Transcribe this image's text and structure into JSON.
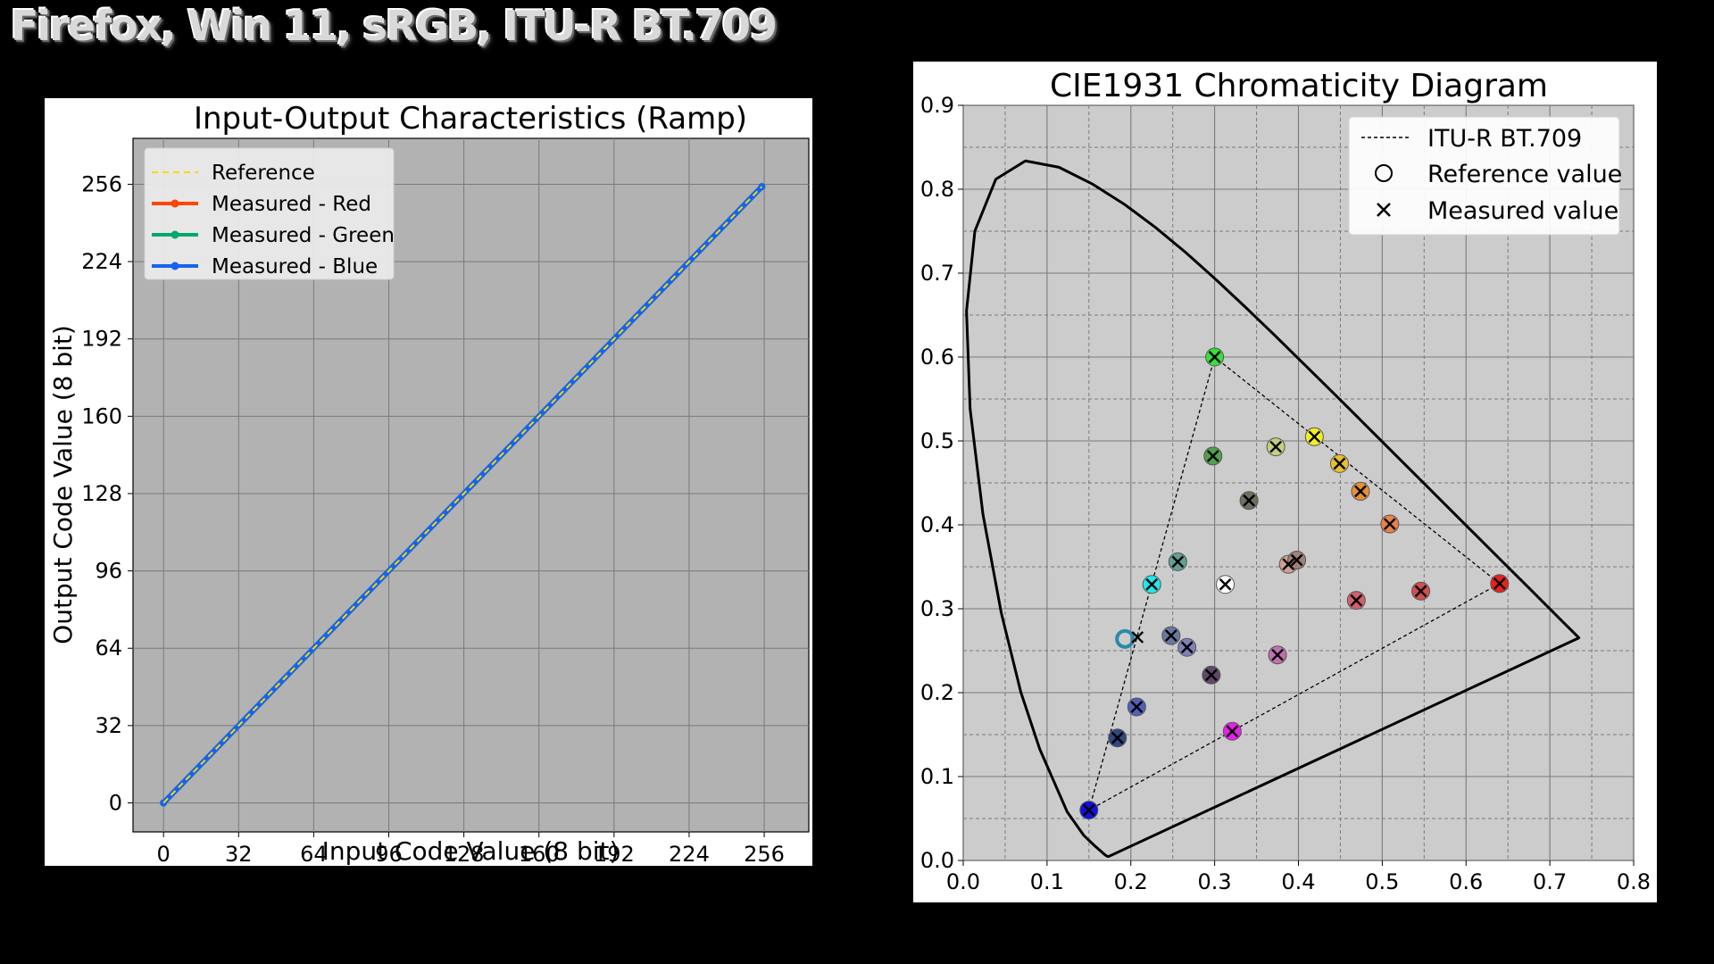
{
  "page": {
    "title": "Firefox, Win 11, sRGB, ITU-R BT.709"
  },
  "chart_data": [
    {
      "type": "line",
      "title": "Input-Output Characteristics (Ramp)",
      "xlabel": "Input Code Value (8 bit)",
      "ylabel": "Output Code Value (8 bit)",
      "xlim": [
        -13,
        275
      ],
      "ylim": [
        -12,
        275
      ],
      "xticks": [
        0,
        32,
        64,
        96,
        128,
        160,
        192,
        224,
        256
      ],
      "yticks": [
        0,
        32,
        64,
        96,
        128,
        160,
        192,
        224,
        256
      ],
      "grid": true,
      "legend_position": "top-left",
      "series": [
        {
          "name": "Reference",
          "color": "#ffd700",
          "style": "dashed",
          "x": [
            0,
            255
          ],
          "y": [
            0,
            255
          ]
        },
        {
          "name": "Measured - Red",
          "color": "#ff4500",
          "style": "solid-marker",
          "x": [
            0,
            255
          ],
          "y": [
            0,
            255
          ]
        },
        {
          "name": "Measured - Green",
          "color": "#00a86b",
          "style": "solid-marker",
          "x": [
            0,
            255
          ],
          "y": [
            0,
            255
          ]
        },
        {
          "name": "Measured - Blue",
          "color": "#1464f0",
          "style": "solid-marker",
          "x": [
            0,
            255
          ],
          "y": [
            0,
            255
          ]
        }
      ]
    },
    {
      "type": "scatter",
      "title": "CIE1931 Chromaticity Diagram",
      "xlim": [
        0.0,
        0.8
      ],
      "ylim": [
        0.0,
        0.9
      ],
      "xticks": [
        "0.0",
        "0.1",
        "0.2",
        "0.3",
        "0.4",
        "0.5",
        "0.6",
        "0.7",
        "0.8"
      ],
      "yticks": [
        "0.0",
        "0.1",
        "0.2",
        "0.3",
        "0.4",
        "0.5",
        "0.6",
        "0.7",
        "0.8",
        "0.9"
      ],
      "grid": true,
      "legend_position": "top-right",
      "legend": {
        "gamut": "ITU-R BT.709",
        "reference": "Reference value",
        "measured": "Measured value"
      },
      "spectral_locus": [
        [
          0.1741,
          0.005
        ],
        [
          0.1738,
          0.0049
        ],
        [
          0.1733,
          0.0048
        ],
        [
          0.1726,
          0.0048
        ],
        [
          0.1714,
          0.0051
        ],
        [
          0.1689,
          0.0069
        ],
        [
          0.1644,
          0.0109
        ],
        [
          0.1566,
          0.0177
        ],
        [
          0.144,
          0.0297
        ],
        [
          0.1241,
          0.0578
        ],
        [
          0.0913,
          0.1327
        ],
        [
          0.0687,
          0.2007
        ],
        [
          0.0454,
          0.295
        ],
        [
          0.0235,
          0.4127
        ],
        [
          0.0082,
          0.5384
        ],
        [
          0.0039,
          0.6548
        ],
        [
          0.0139,
          0.7502
        ],
        [
          0.0389,
          0.812
        ],
        [
          0.0743,
          0.8338
        ],
        [
          0.1142,
          0.8262
        ],
        [
          0.1547,
          0.8059
        ],
        [
          0.1929,
          0.7816
        ],
        [
          0.2296,
          0.7543
        ],
        [
          0.2658,
          0.7243
        ],
        [
          0.3016,
          0.6923
        ],
        [
          0.3373,
          0.6589
        ],
        [
          0.3731,
          0.6245
        ],
        [
          0.4087,
          0.5896
        ],
        [
          0.4441,
          0.5547
        ],
        [
          0.4788,
          0.5202
        ],
        [
          0.5125,
          0.4866
        ],
        [
          0.5448,
          0.4544
        ],
        [
          0.5752,
          0.4242
        ],
        [
          0.6029,
          0.3965
        ],
        [
          0.627,
          0.3725
        ],
        [
          0.6482,
          0.3514
        ],
        [
          0.6658,
          0.334
        ],
        [
          0.6801,
          0.3197
        ],
        [
          0.6915,
          0.3083
        ],
        [
          0.7006,
          0.2993
        ],
        [
          0.714,
          0.2859
        ],
        [
          0.7347,
          0.2653
        ]
      ],
      "gamut": [
        [
          0.64,
          0.33
        ],
        [
          0.3,
          0.6
        ],
        [
          0.15,
          0.06
        ]
      ],
      "points": [
        {
          "x": 0.64,
          "y": 0.33,
          "color": "#e82020",
          "mx": 0.64,
          "my": 0.33
        },
        {
          "x": 0.3,
          "y": 0.6,
          "color": "#38e038",
          "mx": 0.3,
          "my": 0.6
        },
        {
          "x": 0.15,
          "y": 0.06,
          "color": "#1010e0",
          "mx": 0.15,
          "my": 0.06
        },
        {
          "x": 0.419,
          "y": 0.505,
          "color": "#f0f020",
          "mx": 0.419,
          "my": 0.505
        },
        {
          "x": 0.225,
          "y": 0.329,
          "color": "#20e8e8",
          "mx": 0.225,
          "my": 0.329
        },
        {
          "x": 0.321,
          "y": 0.154,
          "color": "#e820e8",
          "mx": 0.321,
          "my": 0.154
        },
        {
          "x": 0.3127,
          "y": 0.329,
          "color": "#ffffff",
          "mx": 0.3127,
          "my": 0.329
        },
        {
          "x": 0.193,
          "y": 0.264,
          "color": "#2a8aaa",
          "mx": 0.208,
          "my": 0.266,
          "ring": true
        },
        {
          "x": 0.449,
          "y": 0.473,
          "color": "#e8c030",
          "mx": 0.449,
          "my": 0.473
        },
        {
          "x": 0.474,
          "y": 0.44,
          "color": "#e89030",
          "mx": 0.474,
          "my": 0.44
        },
        {
          "x": 0.509,
          "y": 0.401,
          "color": "#e88048",
          "mx": 0.509,
          "my": 0.401
        },
        {
          "x": 0.546,
          "y": 0.321,
          "color": "#d05050",
          "mx": 0.546,
          "my": 0.321
        },
        {
          "x": 0.469,
          "y": 0.31,
          "color": "#d06070",
          "mx": 0.469,
          "my": 0.31
        },
        {
          "x": 0.373,
          "y": 0.493,
          "color": "#c0d080",
          "mx": 0.373,
          "my": 0.493
        },
        {
          "x": 0.298,
          "y": 0.482,
          "color": "#50a050",
          "mx": 0.298,
          "my": 0.482
        },
        {
          "x": 0.341,
          "y": 0.429,
          "color": "#707060",
          "mx": 0.341,
          "my": 0.429
        },
        {
          "x": 0.256,
          "y": 0.356,
          "color": "#60a098",
          "mx": 0.256,
          "my": 0.356
        },
        {
          "x": 0.388,
          "y": 0.353,
          "color": "#d0a090",
          "mx": 0.388,
          "my": 0.353
        },
        {
          "x": 0.398,
          "y": 0.358,
          "color": "#a08078",
          "mx": 0.398,
          "my": 0.358
        },
        {
          "x": 0.248,
          "y": 0.268,
          "color": "#6878a0",
          "mx": 0.248,
          "my": 0.268
        },
        {
          "x": 0.267,
          "y": 0.254,
          "color": "#8080b8",
          "mx": 0.267,
          "my": 0.254
        },
        {
          "x": 0.296,
          "y": 0.221,
          "color": "#604868",
          "mx": 0.296,
          "my": 0.221
        },
        {
          "x": 0.375,
          "y": 0.245,
          "color": "#c070b0",
          "mx": 0.375,
          "my": 0.245
        },
        {
          "x": 0.207,
          "y": 0.183,
          "color": "#5060b8",
          "mx": 0.207,
          "my": 0.183
        },
        {
          "x": 0.184,
          "y": 0.146,
          "color": "#304880",
          "mx": 0.184,
          "my": 0.146
        }
      ]
    }
  ]
}
